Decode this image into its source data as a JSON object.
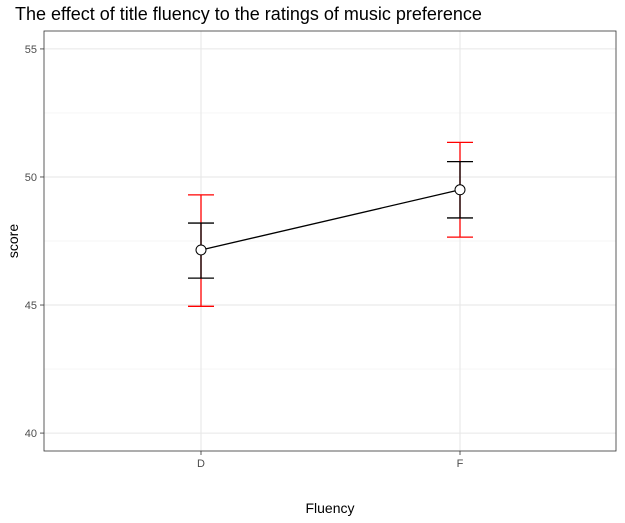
{
  "chart_data": {
    "type": "line",
    "title": "The effect of title fluency to the ratings of music preference",
    "xlabel": "Fluency",
    "ylabel": "score",
    "categories": [
      "D",
      "F"
    ],
    "ylim": [
      39.3,
      55.7
    ],
    "yticks": [
      40,
      45,
      50,
      55
    ],
    "grid": true,
    "series": [
      {
        "values": [
          47.15,
          49.5
        ],
        "error_inner": [
          [
            46.05,
            48.2
          ],
          [
            48.4,
            50.6
          ]
        ],
        "error_outer": [
          [
            44.95,
            49.3
          ],
          [
            47.65,
            51.35
          ]
        ],
        "color": "#000000",
        "inner_error_color": "#000000",
        "outer_error_color": "#ff0000"
      }
    ]
  }
}
